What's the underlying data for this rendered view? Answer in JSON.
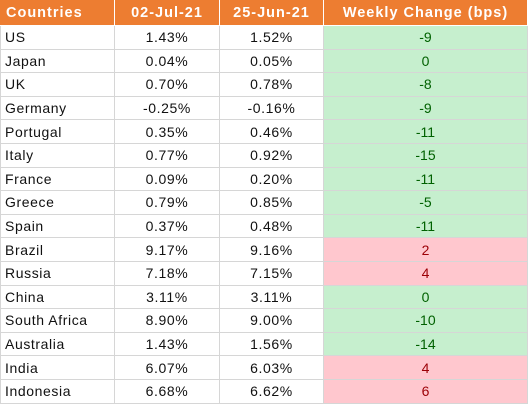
{
  "table": {
    "headers": [
      "Countries",
      "02-Jul-21",
      "25-Jun-21",
      "Weekly Change (bps)"
    ],
    "rows": [
      {
        "country": "US",
        "jul02": "1.43%",
        "jun25": "1.52%",
        "change": "-9",
        "sign": "neg"
      },
      {
        "country": "Japan",
        "jul02": "0.04%",
        "jun25": "0.05%",
        "change": "0",
        "sign": "zero"
      },
      {
        "country": "UK",
        "jul02": "0.70%",
        "jun25": "0.78%",
        "change": "-8",
        "sign": "neg"
      },
      {
        "country": "Germany",
        "jul02": "-0.25%",
        "jun25": "-0.16%",
        "change": "-9",
        "sign": "neg"
      },
      {
        "country": "Portugal",
        "jul02": "0.35%",
        "jun25": "0.46%",
        "change": "-11",
        "sign": "neg"
      },
      {
        "country": "Italy",
        "jul02": "0.77%",
        "jun25": "0.92%",
        "change": "-15",
        "sign": "neg"
      },
      {
        "country": "France",
        "jul02": "0.09%",
        "jun25": "0.20%",
        "change": "-11",
        "sign": "neg"
      },
      {
        "country": "Greece",
        "jul02": "0.79%",
        "jun25": "0.85%",
        "change": "-5",
        "sign": "neg"
      },
      {
        "country": "Spain",
        "jul02": "0.37%",
        "jun25": "0.48%",
        "change": "-11",
        "sign": "neg"
      },
      {
        "country": "Brazil",
        "jul02": "9.17%",
        "jun25": "9.16%",
        "change": "2",
        "sign": "pos"
      },
      {
        "country": "Russia",
        "jul02": "7.18%",
        "jun25": "7.15%",
        "change": "4",
        "sign": "pos"
      },
      {
        "country": "China",
        "jul02": "3.11%",
        "jun25": "3.11%",
        "change": "0",
        "sign": "zero"
      },
      {
        "country": "South Africa",
        "jul02": "8.90%",
        "jun25": "9.00%",
        "change": "-10",
        "sign": "neg"
      },
      {
        "country": "Australia",
        "jul02": "1.43%",
        "jun25": "1.56%",
        "change": "-14",
        "sign": "neg"
      },
      {
        "country": "India",
        "jul02": "6.07%",
        "jun25": "6.03%",
        "change": "4",
        "sign": "pos"
      },
      {
        "country": "Indonesia",
        "jul02": "6.68%",
        "jun25": "6.62%",
        "change": "6",
        "sign": "pos"
      }
    ]
  },
  "colors": {
    "header_bg": "#ED7D31",
    "header_text": "#FFFFFF",
    "positive_bg": "#FFC7CE",
    "positive_text": "#9C0006",
    "negative_bg": "#C6EFCE",
    "negative_text": "#006100"
  }
}
